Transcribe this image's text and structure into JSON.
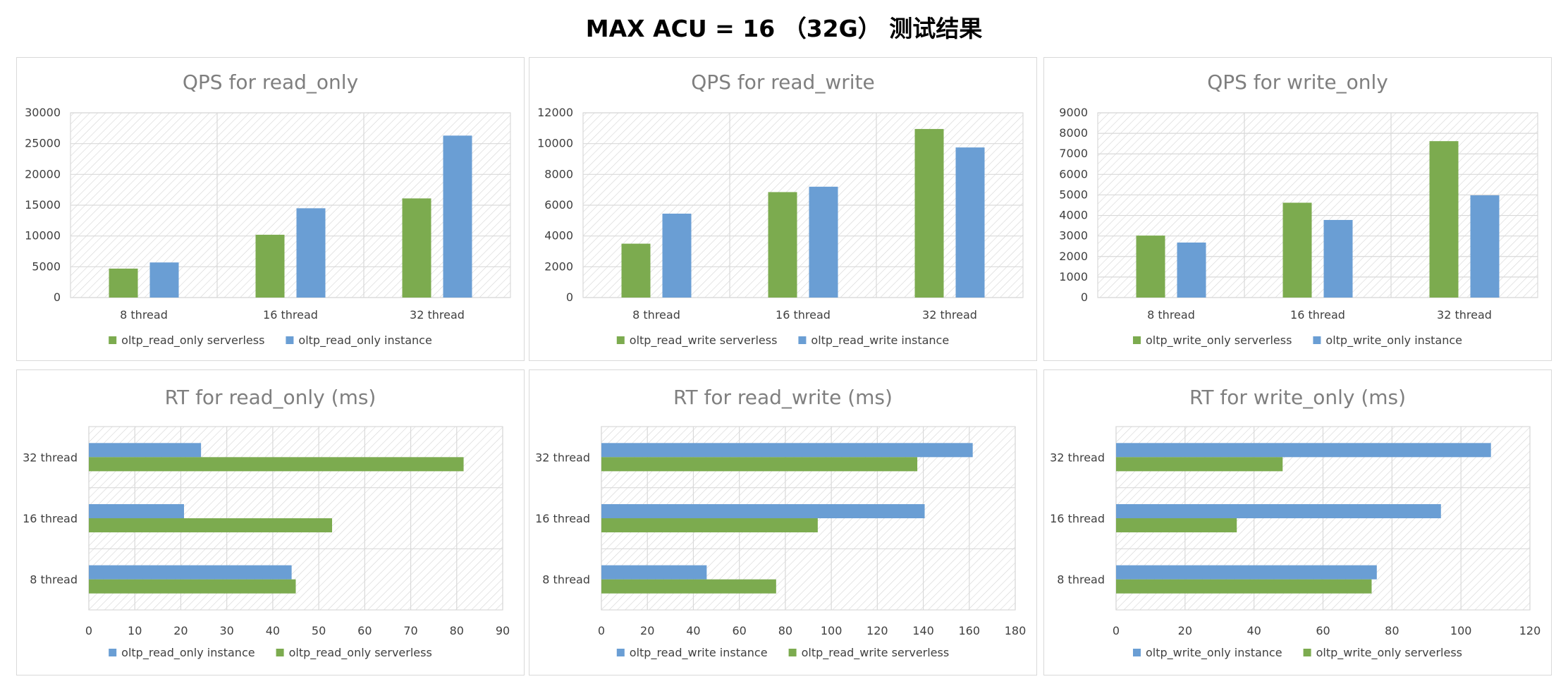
{
  "page_title": "MAX ACU = 16 （32G） 测试结果",
  "colors": {
    "serverless": "#7cab4f",
    "instance": "#6a9ed4"
  },
  "chart_data": [
    {
      "type": "bar",
      "title": "QPS for read_only",
      "categories": [
        "8 thread",
        "16 thread",
        "32 thread"
      ],
      "ylim": [
        0,
        30000
      ],
      "yticks": [
        0,
        5000,
        10000,
        15000,
        20000,
        25000,
        30000
      ],
      "grid": true,
      "legend_position": "bottom",
      "series": [
        {
          "name": "oltp_read_only serverless",
          "color": "#7cab4f",
          "values": [
            4700,
            10200,
            16100
          ]
        },
        {
          "name": "oltp_read_only instance",
          "color": "#6a9ed4",
          "values": [
            5700,
            14500,
            26300
          ]
        }
      ]
    },
    {
      "type": "bar",
      "title": "QPS for read_write",
      "categories": [
        "8 thread",
        "16 thread",
        "32 thread"
      ],
      "ylim": [
        0,
        12000
      ],
      "yticks": [
        0,
        2000,
        4000,
        6000,
        8000,
        10000,
        12000
      ],
      "grid": true,
      "legend_position": "bottom",
      "series": [
        {
          "name": "oltp_read_write serverless",
          "color": "#7cab4f",
          "values": [
            3500,
            6850,
            10950
          ]
        },
        {
          "name": "oltp_read_write instance",
          "color": "#6a9ed4",
          "values": [
            5450,
            7200,
            9750
          ]
        }
      ]
    },
    {
      "type": "bar",
      "title": "QPS for write_only",
      "categories": [
        "8 thread",
        "16 thread",
        "32 thread"
      ],
      "ylim": [
        0,
        9000
      ],
      "yticks": [
        0,
        1000,
        2000,
        3000,
        4000,
        5000,
        6000,
        7000,
        8000,
        9000
      ],
      "grid": true,
      "legend_position": "bottom",
      "series": [
        {
          "name": "oltp_write_only serverless",
          "color": "#7cab4f",
          "values": [
            3020,
            4620,
            7620
          ]
        },
        {
          "name": "oltp_write_only instance",
          "color": "#6a9ed4",
          "values": [
            2680,
            3780,
            4980
          ]
        }
      ]
    },
    {
      "type": "barh",
      "title": "RT for read_only (ms)",
      "categories": [
        "8 thread",
        "16 thread",
        "32 thread"
      ],
      "xlim": [
        0,
        90
      ],
      "xticks": [
        0,
        10,
        20,
        30,
        40,
        50,
        60,
        70,
        80,
        90
      ],
      "grid": true,
      "legend_position": "bottom",
      "series": [
        {
          "name": "oltp_read_only instance",
          "color": "#6a9ed4",
          "values": [
            44.1,
            20.7,
            24.4
          ]
        },
        {
          "name": "oltp_read_only serverless",
          "color": "#7cab4f",
          "values": [
            45.0,
            52.9,
            81.5
          ]
        }
      ]
    },
    {
      "type": "barh",
      "title": "RT for read_write (ms)",
      "categories": [
        "8 thread",
        "16 thread",
        "32 thread"
      ],
      "xlim": [
        0,
        180
      ],
      "xticks": [
        0,
        20,
        40,
        60,
        80,
        100,
        120,
        140,
        160,
        180
      ],
      "grid": true,
      "legend_position": "bottom",
      "series": [
        {
          "name": "oltp_read_write instance",
          "color": "#6a9ed4",
          "values": [
            45.8,
            140.6,
            161.5
          ]
        },
        {
          "name": "oltp_read_write serverless",
          "color": "#7cab4f",
          "values": [
            76.0,
            94.1,
            137.4
          ]
        }
      ]
    },
    {
      "type": "barh",
      "title": "RT for write_only (ms)",
      "categories": [
        "8 thread",
        "16 thread",
        "32 thread"
      ],
      "xlim": [
        0,
        120
      ],
      "xticks": [
        0,
        20,
        40,
        60,
        80,
        100,
        120
      ],
      "grid": true,
      "legend_position": "bottom",
      "series": [
        {
          "name": "oltp_write_only instance",
          "color": "#6a9ed4",
          "values": [
            75.6,
            94.2,
            108.7
          ]
        },
        {
          "name": "oltp_write_only serverless",
          "color": "#7cab4f",
          "values": [
            74.1,
            35.0,
            48.3
          ]
        }
      ]
    }
  ]
}
